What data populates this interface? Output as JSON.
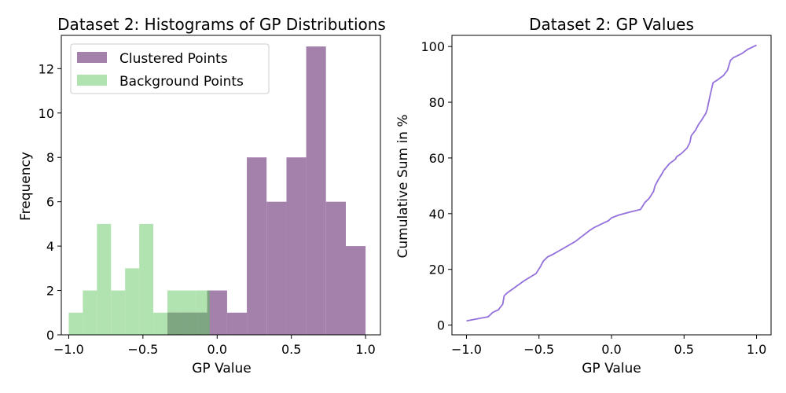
{
  "chart_data": [
    {
      "type": "bar",
      "title": "Dataset 2: Histograms of GP Distributions",
      "xlabel": "GP Value",
      "ylabel": "Frequency",
      "xlim": [
        -1.05,
        1.1
      ],
      "ylim": [
        0,
        13.5
      ],
      "xticks": [
        -1.0,
        -0.5,
        0.0,
        0.5,
        1.0
      ],
      "xtick_labels": [
        "−1.0",
        "−0.5",
        "0.0",
        "0.5",
        "1.0"
      ],
      "yticks": [
        0,
        2,
        4,
        6,
        8,
        10,
        12
      ],
      "legend": "top-left",
      "overlap_color": "#7da681",
      "series": [
        {
          "name": "Clustered Points",
          "color": "#a481ab",
          "bins": [
            -0.335,
            -0.201,
            -0.067,
            0.067,
            0.2,
            0.333,
            0.467,
            0.6,
            0.733,
            0.867,
            1.0
          ],
          "values": [
            1,
            1,
            2,
            1,
            8,
            6,
            8,
            13,
            6,
            4
          ]
        },
        {
          "name": "Background Points",
          "color": "#b0e3b0",
          "bins": [
            -1.0,
            -0.905,
            -0.81,
            -0.715,
            -0.62,
            -0.525,
            -0.43,
            -0.335,
            -0.24,
            -0.145,
            -0.05
          ],
          "values": [
            1,
            2,
            5,
            2,
            3,
            5,
            1,
            2,
            2,
            2
          ]
        }
      ]
    },
    {
      "type": "line",
      "title": "Dataset 2: GP Values",
      "xlabel": "GP Value",
      "ylabel": "Cumulative Sum in %",
      "xlim": [
        -1.1,
        1.1
      ],
      "ylim": [
        -3.5,
        104
      ],
      "xticks": [
        -1.0,
        -0.5,
        0.0,
        0.5,
        1.0
      ],
      "xtick_labels": [
        "−1.0",
        "−0.5",
        "0.0",
        "0.5",
        "1.0"
      ],
      "yticks": [
        0,
        20,
        40,
        60,
        80,
        100
      ],
      "grid": false,
      "series": [
        {
          "color": "#9370db",
          "x": [
            -1.0,
            -0.9,
            -0.85,
            -0.82,
            -0.78,
            -0.75,
            -0.74,
            -0.72,
            -0.68,
            -0.6,
            -0.52,
            -0.49,
            -0.47,
            -0.44,
            -0.4,
            -0.35,
            -0.3,
            -0.25,
            -0.2,
            -0.15,
            -0.12,
            -0.06,
            -0.02,
            0.0,
            0.05,
            0.12,
            0.2,
            0.23,
            0.26,
            0.29,
            0.3,
            0.32,
            0.35,
            0.36,
            0.4,
            0.44,
            0.45,
            0.48,
            0.52,
            0.54,
            0.55,
            0.58,
            0.6,
            0.62,
            0.65,
            0.66,
            0.67,
            0.68,
            0.7,
            0.73,
            0.77,
            0.8,
            0.82,
            0.84,
            0.9,
            0.94,
            0.96,
            1.0
          ],
          "y": [
            1.5,
            2.5,
            3,
            4.5,
            5.5,
            7.5,
            10.5,
            11.5,
            13,
            16,
            18.5,
            21,
            23,
            24.5,
            25.5,
            27,
            28.5,
            30,
            32,
            34,
            35,
            36.5,
            37.5,
            38.5,
            39.5,
            40.5,
            41.5,
            44,
            45.5,
            48,
            50,
            52,
            54.5,
            55.5,
            58,
            59.5,
            60.5,
            61.5,
            63.5,
            65.5,
            68,
            70,
            72,
            73.5,
            76,
            77.5,
            80,
            82.5,
            87,
            88,
            89.5,
            91.5,
            95,
            96,
            97.5,
            99,
            99.5,
            100.5
          ]
        }
      ]
    }
  ]
}
